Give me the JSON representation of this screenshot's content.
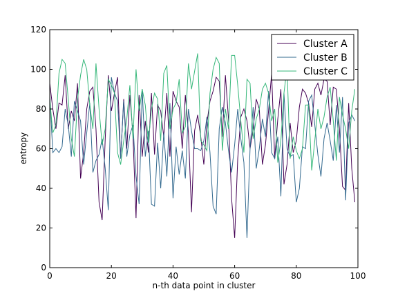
{
  "chart_data": {
    "type": "line",
    "xlabel": "n-th data point in cluster",
    "ylabel": "entropy",
    "xlim": [
      0,
      100
    ],
    "ylim": [
      0,
      120
    ],
    "xticks": [
      "0",
      "20",
      "40",
      "60",
      "80",
      "100"
    ],
    "yticks": [
      "0",
      "20",
      "40",
      "60",
      "80",
      "100",
      "120"
    ],
    "grid": false,
    "legend_position": "top-right",
    "series": [
      {
        "name": "Cluster A",
        "color": "#440154",
        "values": [
          93,
          80,
          70,
          83,
          82,
          97,
          70,
          79,
          74,
          93,
          45,
          58,
          80,
          89,
          91,
          70,
          33,
          24,
          65,
          97,
          79,
          88,
          96,
          55,
          85,
          60,
          87,
          67,
          25,
          87,
          56,
          74,
          58,
          88,
          57,
          82,
          79,
          66,
          88,
          56,
          89,
          84,
          81,
          60,
          87,
          68,
          28,
          69,
          77,
          66,
          52,
          73,
          84,
          89,
          96,
          94,
          66,
          97,
          75,
          35,
          15,
          55,
          76,
          80,
          74,
          60,
          70,
          85,
          80,
          52,
          62,
          79,
          98,
          55,
          75,
          90,
          42,
          52,
          73,
          58,
          64,
          81,
          90,
          88,
          83,
          71,
          90,
          93,
          87,
          95,
          94,
          72,
          91,
          90,
          70,
          41,
          39,
          83,
          50,
          33
        ]
      },
      {
        "name": "Cluster B",
        "color": "#31688e",
        "values": [
          87,
          58,
          60,
          58,
          61,
          80,
          72,
          56,
          84,
          79,
          74,
          52,
          68,
          83,
          48,
          54,
          57,
          65,
          50,
          29,
          96,
          88,
          84,
          55,
          84,
          56,
          67,
          72,
          46,
          32,
          90,
          56,
          69,
          32,
          31,
          63,
          40,
          68,
          46,
          83,
          35,
          61,
          47,
          59,
          45,
          80,
          69,
          60,
          60,
          59,
          64,
          76,
          58,
          31,
          27,
          70,
          81,
          73,
          59,
          48,
          62,
          80,
          65,
          53,
          15,
          60,
          81,
          50,
          60,
          75,
          66,
          89,
          58,
          55,
          66,
          36,
          88,
          60,
          56,
          57,
          33,
          40,
          61,
          60,
          84,
          87,
          72,
          57,
          46,
          65,
          73,
          64,
          54,
          82,
          58,
          86,
          34,
          73,
          77,
          74
        ]
      },
      {
        "name": "Cluster C",
        "color": "#35b779",
        "values": [
          85,
          68,
          72,
          98,
          105,
          103,
          85,
          65,
          56,
          85,
          97,
          105,
          100,
          82,
          70,
          103,
          80,
          62,
          70,
          95,
          92,
          88,
          58,
          52,
          64,
          75,
          92,
          65,
          100,
          79,
          90,
          82,
          63,
          80,
          88,
          85,
          64,
          98,
          102,
          70,
          80,
          83,
          95,
          68,
          71,
          103,
          90,
          99,
          108,
          64,
          62,
          59,
          88,
          100,
          106,
          103,
          59,
          80,
          70,
          107,
          107,
          92,
          74,
          58,
          95,
          93,
          65,
          75,
          80,
          90,
          93,
          88,
          74,
          80,
          53,
          64,
          88,
          101,
          55,
          66,
          59,
          55,
          60,
          82,
          82,
          49,
          64,
          80,
          70,
          76,
          86,
          91,
          74,
          54,
          86,
          77,
          70,
          60,
          79,
          90
        ]
      }
    ]
  }
}
